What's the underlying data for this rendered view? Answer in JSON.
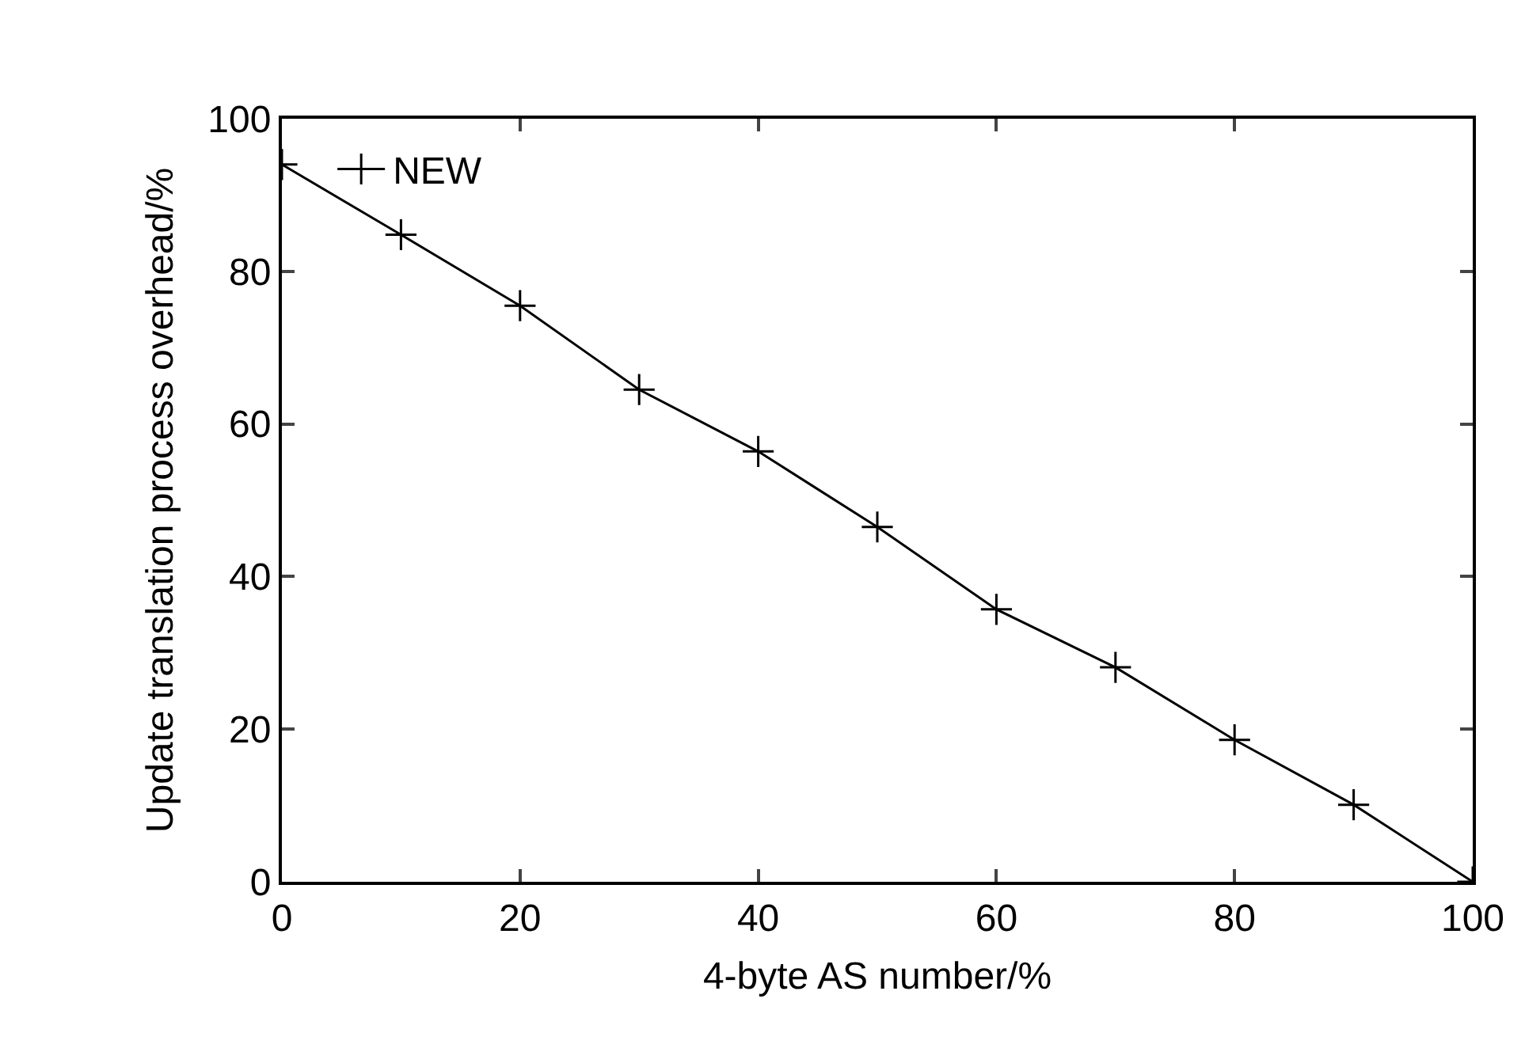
{
  "chart_data": {
    "type": "line",
    "xlabel": "4-byte AS number/%",
    "ylabel": "Update translation process overhead/%",
    "x": [
      0,
      10,
      20,
      30,
      40,
      50,
      60,
      70,
      80,
      90,
      100
    ],
    "series": [
      {
        "name": "NEW",
        "color": "#000000",
        "values": [
          94.0,
          84.8,
          75.5,
          64.5,
          56.4,
          46.5,
          35.7,
          28.1,
          18.6,
          10.1,
          0
        ]
      }
    ],
    "xlim": [
      0,
      100
    ],
    "ylim": [
      0,
      100
    ],
    "xticks": [
      0,
      20,
      40,
      60,
      80,
      100
    ],
    "yticks": [
      0,
      20,
      40,
      60,
      80,
      100
    ],
    "legend": "top left",
    "marker": "cross",
    "line_style": "solid"
  }
}
